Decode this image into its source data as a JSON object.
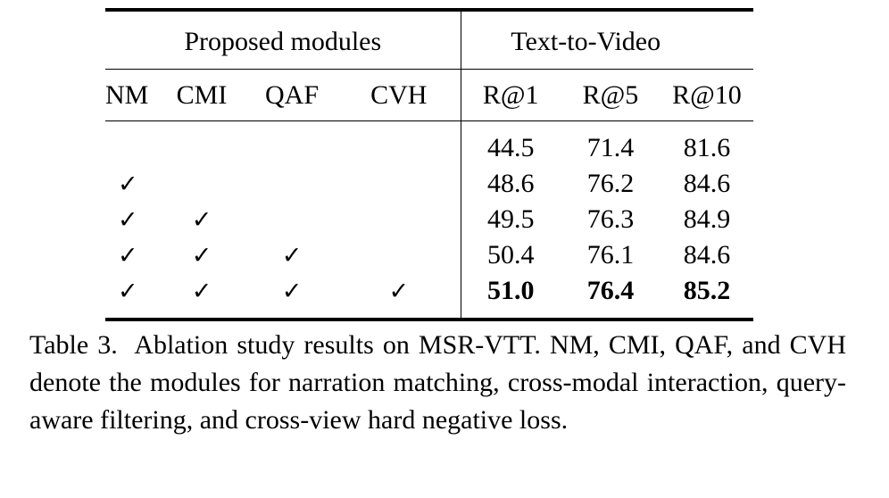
{
  "table": {
    "group_headers": {
      "proposed_modules": "Proposed modules",
      "text_to_video": "Text-to-Video"
    },
    "columns": [
      "NM",
      "CMI",
      "QAF",
      "CVH",
      "R@1",
      "R@5",
      "R@10"
    ],
    "check_symbol": "✓",
    "rows": [
      {
        "nm": "",
        "cmi": "",
        "qaf": "",
        "cvh": "",
        "r1": "44.5",
        "r5": "71.4",
        "r10": "81.6",
        "bold": false
      },
      {
        "nm": "✓",
        "cmi": "",
        "qaf": "",
        "cvh": "",
        "r1": "48.6",
        "r5": "76.2",
        "r10": "84.6",
        "bold": false
      },
      {
        "nm": "✓",
        "cmi": "✓",
        "qaf": "",
        "cvh": "",
        "r1": "49.5",
        "r5": "76.3",
        "r10": "84.9",
        "bold": false
      },
      {
        "nm": "✓",
        "cmi": "✓",
        "qaf": "✓",
        "cvh": "",
        "r1": "50.4",
        "r5": "76.1",
        "r10": "84.6",
        "bold": false
      },
      {
        "nm": "✓",
        "cmi": "✓",
        "qaf": "✓",
        "cvh": "✓",
        "r1": "51.0",
        "r5": "76.4",
        "r10": "85.2",
        "bold": true
      }
    ]
  },
  "caption": {
    "label": "Table 3.",
    "text": "Ablation study results on MSR-VTT. NM, CMI, QAF, and CVH denote the modules for narration matching, cross-modal interaction, query-aware filtering, and cross-view hard negative loss."
  }
}
